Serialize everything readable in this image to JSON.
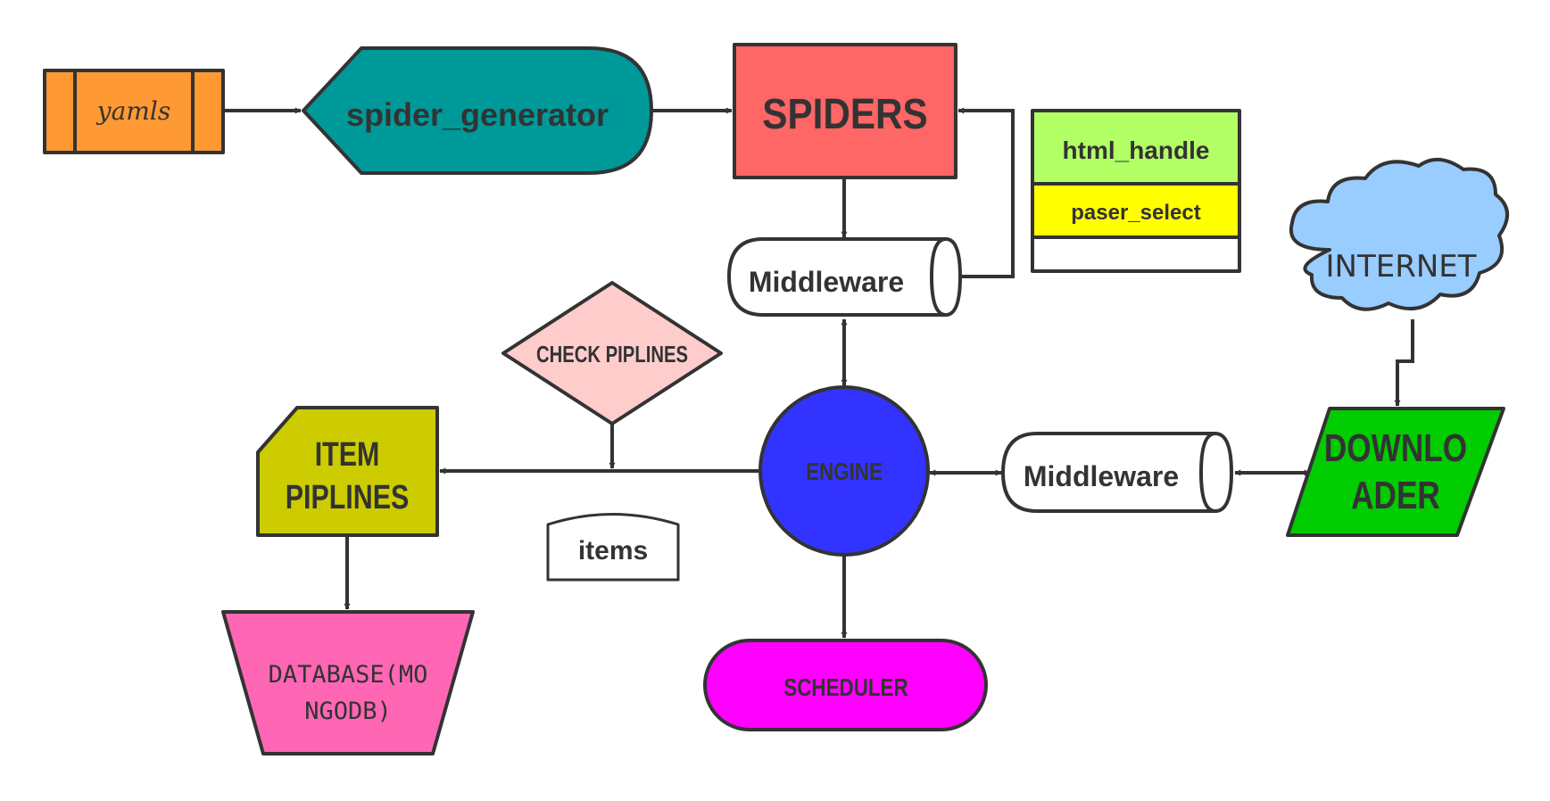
{
  "nodes": {
    "yamls": "yamls",
    "spider_generator": "spider_generator",
    "spiders": "SPIDERS",
    "middleware_top": "Middleware",
    "html_handle": "html_handle",
    "paser_select": "paser_select",
    "internet": "INTERNET",
    "check_piplines": "CHECK PIPLINES",
    "item_piplines": [
      "ITEM",
      "PIPLINES"
    ],
    "engine": "ENGINE",
    "middleware_right": "Middleware",
    "downloader": [
      "DOWNLO",
      "ADER"
    ],
    "items": "items",
    "database": [
      "DATABASE(MO",
      "NGODB)"
    ],
    "scheduler": "SCHEDULER"
  },
  "colors": {
    "yamls": "#ff9933",
    "spider_generator": "#009999",
    "spiders": "#ff6666",
    "html_handle": "#b3ff66",
    "paser_select": "#ffff00",
    "internet": "#99ccff",
    "check_piplines": "#ffcccc",
    "item_piplines": "#cccc00",
    "engine": "#3333ff",
    "downloader": "#00cc00",
    "items_text": "#ff6666",
    "database": "#ff66b3",
    "scheduler": "#ff00ff",
    "stroke": "#333333"
  },
  "edges": [
    {
      "from": "yamls",
      "to": "spider_generator"
    },
    {
      "from": "spider_generator",
      "to": "spiders"
    },
    {
      "from": "spiders",
      "to": "middleware_top"
    },
    {
      "from": "middleware_top",
      "to": "spiders"
    },
    {
      "from": "middleware_top",
      "to": "engine",
      "bidirectional": true
    },
    {
      "from": "engine",
      "to": "middleware_right",
      "bidirectional": true
    },
    {
      "from": "middleware_right",
      "to": "downloader",
      "bidirectional": true
    },
    {
      "from": "internet",
      "to": "downloader"
    },
    {
      "from": "engine",
      "to": "item_piplines"
    },
    {
      "from": "check_piplines",
      "to": "engine-item-link"
    },
    {
      "from": "item_piplines",
      "to": "database"
    },
    {
      "from": "engine",
      "to": "scheduler"
    }
  ]
}
